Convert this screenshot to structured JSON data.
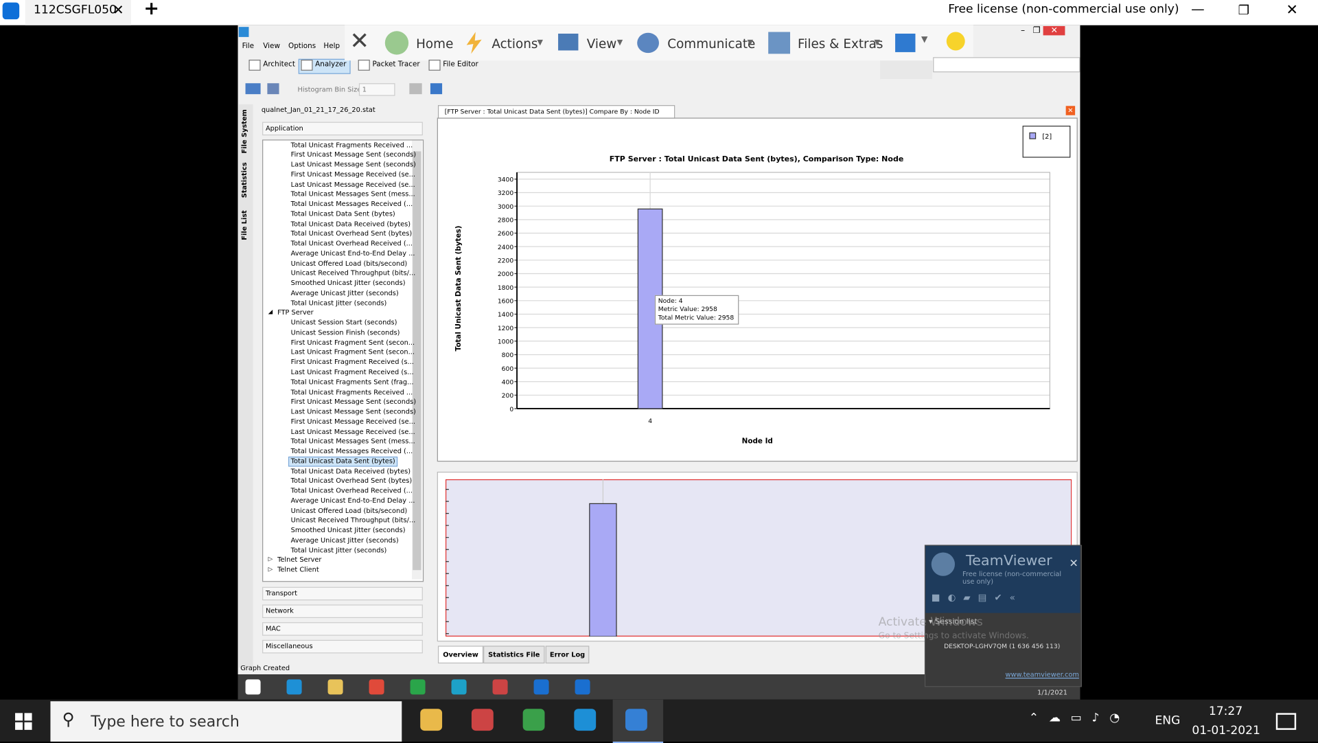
{
  "top_bar": {
    "tab_title": "112CSGFL050",
    "license": "Free license (non-commercial use only)"
  },
  "teamviewer_toolbar": {
    "items": [
      "Home",
      "Actions",
      "View",
      "Communicate",
      "Files & Extras"
    ]
  },
  "app": {
    "menu": [
      "File",
      "View",
      "Options",
      "Help"
    ],
    "modes": [
      "Architect",
      "Analyzer",
      "Packet Tracer",
      "File Editor"
    ],
    "bin_label": "Histogram Bin Size",
    "bin_value": "1",
    "side_tabs": [
      "File System",
      "Statistics",
      "File List"
    ],
    "file": "qualnet_Jan_01_21_17_26_20.stat",
    "categories": [
      "Application",
      "Transport",
      "Network",
      "MAC",
      "Miscellaneous"
    ],
    "tree": {
      "pre_items": [
        "Total Unicast Fragments Received ...",
        "First Unicast Message Sent (seconds)",
        "Last Unicast Message Sent (seconds)",
        "First Unicast Message Received (se...",
        "Last Unicast Message Received (se...",
        "Total Unicast Messages Sent (mess...",
        "Total Unicast Messages Received (...",
        "Total Unicast Data Sent (bytes)",
        "Total Unicast Data Received (bytes)",
        "Total Unicast Overhead Sent (bytes)",
        "Total Unicast Overhead Received (...",
        "Average Unicast End-to-End Delay ...",
        "Unicast Offered Load (bits/second)",
        "Unicast Received Throughput (bits/...",
        "Smoothed Unicast Jitter (seconds)",
        "Average Unicast Jitter (seconds)",
        "Total Unicast Jitter (seconds)"
      ],
      "group": "FTP Server",
      "group_items": [
        {
          "label": "Unicast Session Start (seconds)"
        },
        {
          "label": "Unicast Session Finish (seconds)"
        },
        {
          "label": "First Unicast Fragment Sent (secon..."
        },
        {
          "label": "Last Unicast Fragment Sent (secon..."
        },
        {
          "label": "First Unicast Fragment Received (s..."
        },
        {
          "label": "Last Unicast Fragment Received (s..."
        },
        {
          "label": "Total Unicast Fragments Sent (frag..."
        },
        {
          "label": "Total Unicast Fragments Received ..."
        },
        {
          "label": "First Unicast Message Sent (seconds)"
        },
        {
          "label": "Last Unicast Message Sent (seconds)"
        },
        {
          "label": "First Unicast Message Received (se..."
        },
        {
          "label": "Last Unicast Message Received (se..."
        },
        {
          "label": "Total Unicast Messages Sent (mess..."
        },
        {
          "label": "Total Unicast Messages Received (..."
        },
        {
          "label": "Total Unicast Data Sent (bytes)",
          "selected": true
        },
        {
          "label": "Total Unicast Data Received (bytes)"
        },
        {
          "label": "Total Unicast Overhead Sent (bytes)"
        },
        {
          "label": "Total Unicast Overhead Received (..."
        },
        {
          "label": "Average Unicast End-to-End Delay ..."
        },
        {
          "label": "Unicast Offered Load (bits/second)"
        },
        {
          "label": "Unicast Received Throughput (bits/..."
        },
        {
          "label": "Smoothed Unicast Jitter (seconds)"
        },
        {
          "label": "Average Unicast Jitter (seconds)"
        },
        {
          "label": "Total Unicast Jitter (seconds)"
        }
      ],
      "post_items": [
        "Telnet Server",
        "Telnet Client"
      ]
    },
    "status": "Graph Created",
    "bottom_tabs": [
      "Overview",
      "Statistics File",
      "Error Log"
    ],
    "taskbar_date": "1/1/2021"
  },
  "chart": {
    "type": "bar",
    "tab": "[FTP Server :  Total Unicast Data Sent (bytes)] Compare By : Node ID",
    "title": "FTP Server :  Total Unicast Data Sent (bytes), Comparison Type: Node",
    "y_label": "Total Unicast Data Sent (bytes)",
    "x_label": "Node Id",
    "legend": "[2]",
    "categories": [
      "4"
    ],
    "values": [
      2958
    ],
    "color": "#a9a9f5",
    "ylim": [
      0,
      3500
    ],
    "yticks": [
      0,
      200,
      400,
      600,
      800,
      1000,
      1200,
      1400,
      1600,
      1800,
      2000,
      2200,
      2400,
      2600,
      2800,
      3000,
      3200,
      3400
    ],
    "grid": true,
    "tooltip": [
      "Node: 4",
      "Metric Value: 2958",
      "Total Metric Value: 2958"
    ]
  },
  "teamviewer_popup": {
    "title": "TeamViewer",
    "license": "Free license (non-commercial use only)",
    "session_list": "Session list",
    "device": "DESKTOP-LGHV7QM (1 636 456 113)",
    "link": "www.teamviewer.com"
  },
  "watermark": [
    "Activate Windows",
    "Go to Settings to activate Windows."
  ],
  "taskbar": {
    "search": "Type here to search",
    "language": "ENG",
    "time": "17:27",
    "date": "01-01-2021"
  }
}
